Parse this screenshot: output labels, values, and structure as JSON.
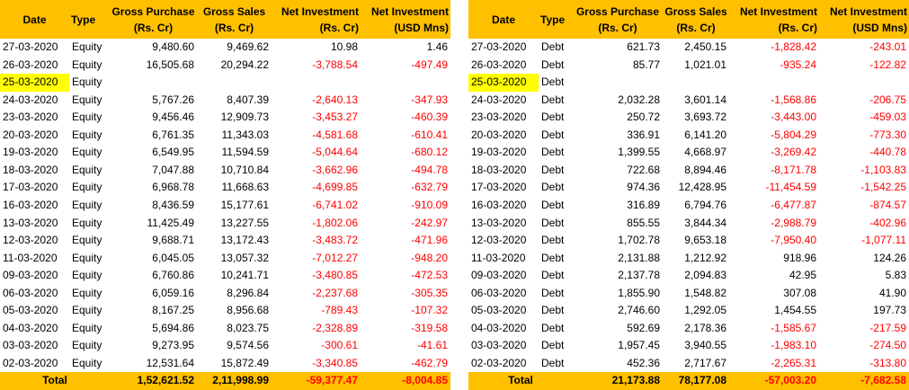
{
  "equity": {
    "headers": {
      "date": "Date",
      "type": "Type",
      "gross_purchase": "Gross Purchase",
      "gross_purchase_unit": "(Rs. Cr)",
      "gross_sales": "Gross Sales",
      "gross_sales_unit": "(Rs. Cr)",
      "net_inv_rs": "Net Investment",
      "net_inv_rs_unit": "(Rs. Cr)",
      "net_inv_usd": "Net Investment",
      "net_inv_usd_unit": "(USD Mns)"
    },
    "rows": [
      {
        "date": "27-03-2020",
        "type": "Equity",
        "gp": "9,480.60",
        "gs": "9,469.62",
        "ni": "10.98",
        "nu": "1.46",
        "neg": false,
        "hl": false
      },
      {
        "date": "26-03-2020",
        "type": "Equity",
        "gp": "16,505.68",
        "gs": "20,294.22",
        "ni": "-3,788.54",
        "nu": "-497.49",
        "neg": true,
        "hl": false
      },
      {
        "date": "25-03-2020",
        "type": "Equity",
        "gp": "",
        "gs": "",
        "ni": "",
        "nu": "",
        "neg": false,
        "hl": true
      },
      {
        "date": "24-03-2020",
        "type": "Equity",
        "gp": "5,767.26",
        "gs": "8,407.39",
        "ni": "-2,640.13",
        "nu": "-347.93",
        "neg": true,
        "hl": false
      },
      {
        "date": "23-03-2020",
        "type": "Equity",
        "gp": "9,456.46",
        "gs": "12,909.73",
        "ni": "-3,453.27",
        "nu": "-460.39",
        "neg": true,
        "hl": false
      },
      {
        "date": "20-03-2020",
        "type": "Equity",
        "gp": "6,761.35",
        "gs": "11,343.03",
        "ni": "-4,581.68",
        "nu": "-610.41",
        "neg": true,
        "hl": false
      },
      {
        "date": "19-03-2020",
        "type": "Equity",
        "gp": "6,549.95",
        "gs": "11,594.59",
        "ni": "-5,044.64",
        "nu": "-680.12",
        "neg": true,
        "hl": false
      },
      {
        "date": "18-03-2020",
        "type": "Equity",
        "gp": "7,047.88",
        "gs": "10,710.84",
        "ni": "-3,662.96",
        "nu": "-494.78",
        "neg": true,
        "hl": false
      },
      {
        "date": "17-03-2020",
        "type": "Equity",
        "gp": "6,968.78",
        "gs": "11,668.63",
        "ni": "-4,699.85",
        "nu": "-632.79",
        "neg": true,
        "hl": false
      },
      {
        "date": "16-03-2020",
        "type": "Equity",
        "gp": "8,436.59",
        "gs": "15,177.61",
        "ni": "-6,741.02",
        "nu": "-910.09",
        "neg": true,
        "hl": false
      },
      {
        "date": "13-03-2020",
        "type": "Equity",
        "gp": "11,425.49",
        "gs": "13,227.55",
        "ni": "-1,802.06",
        "nu": "-242.97",
        "neg": true,
        "hl": false
      },
      {
        "date": "12-03-2020",
        "type": "Equity",
        "gp": "9,688.71",
        "gs": "13,172.43",
        "ni": "-3,483.72",
        "nu": "-471.96",
        "neg": true,
        "hl": false
      },
      {
        "date": "11-03-2020",
        "type": "Equity",
        "gp": "6,045.05",
        "gs": "13,057.32",
        "ni": "-7,012.27",
        "nu": "-948.20",
        "neg": true,
        "hl": false
      },
      {
        "date": "09-03-2020",
        "type": "Equity",
        "gp": "6,760.86",
        "gs": "10,241.71",
        "ni": "-3,480.85",
        "nu": "-472.53",
        "neg": true,
        "hl": false
      },
      {
        "date": "06-03-2020",
        "type": "Equity",
        "gp": "6,059.16",
        "gs": "8,296.84",
        "ni": "-2,237.68",
        "nu": "-305.35",
        "neg": true,
        "hl": false
      },
      {
        "date": "05-03-2020",
        "type": "Equity",
        "gp": "8,167.25",
        "gs": "8,956.68",
        "ni": "-789.43",
        "nu": "-107.32",
        "neg": true,
        "hl": false
      },
      {
        "date": "04-03-2020",
        "type": "Equity",
        "gp": "5,694.86",
        "gs": "8,023.75",
        "ni": "-2,328.89",
        "nu": "-319.58",
        "neg": true,
        "hl": false
      },
      {
        "date": "03-03-2020",
        "type": "Equity",
        "gp": "9,273.95",
        "gs": "9,574.56",
        "ni": "-300.61",
        "nu": "-41.61",
        "neg": true,
        "hl": false
      },
      {
        "date": "02-03-2020",
        "type": "Equity",
        "gp": "12,531.64",
        "gs": "15,872.49",
        "ni": "-3,340.85",
        "nu": "-462.79",
        "neg": true,
        "hl": false
      }
    ],
    "total": {
      "label": "Total",
      "gp": "1,52,621.52",
      "gs": "2,11,998.99",
      "ni": "-59,377.47",
      "nu": "-8,004.85"
    }
  },
  "debt": {
    "headers": {
      "date": "Date",
      "type": "Type",
      "gross_purchase": "Gross Purchase",
      "gross_purchase_unit": "(Rs. Cr)",
      "gross_sales": "Gross Sales",
      "gross_sales_unit": "(Rs. Cr)",
      "net_inv_rs": "Net Investment",
      "net_inv_rs_unit": "(Rs. Cr)",
      "net_inv_usd": "Net Investment",
      "net_inv_usd_unit": "(USD Mns)"
    },
    "rows": [
      {
        "date": "27-03-2020",
        "type": "Debt",
        "gp": "621.73",
        "gs": "2,450.15",
        "ni": "-1,828.42",
        "nu": "-243.01",
        "neg": true,
        "hl": false
      },
      {
        "date": "26-03-2020",
        "type": "Debt",
        "gp": "85.77",
        "gs": "1,021.01",
        "ni": "-935.24",
        "nu": "-122.82",
        "neg": true,
        "hl": false
      },
      {
        "date": "25-03-2020",
        "type": "Debt",
        "gp": "",
        "gs": "",
        "ni": "",
        "nu": "",
        "neg": false,
        "hl": true
      },
      {
        "date": "24-03-2020",
        "type": "Debt",
        "gp": "2,032.28",
        "gs": "3,601.14",
        "ni": "-1,568.86",
        "nu": "-206.75",
        "neg": true,
        "hl": false
      },
      {
        "date": "23-03-2020",
        "type": "Debt",
        "gp": "250.72",
        "gs": "3,693.72",
        "ni": "-3,443.00",
        "nu": "-459.03",
        "neg": true,
        "hl": false
      },
      {
        "date": "20-03-2020",
        "type": "Debt",
        "gp": "336.91",
        "gs": "6,141.20",
        "ni": "-5,804.29",
        "nu": "-773.30",
        "neg": true,
        "hl": false
      },
      {
        "date": "19-03-2020",
        "type": "Debt",
        "gp": "1,399.55",
        "gs": "4,668.97",
        "ni": "-3,269.42",
        "nu": "-440.78",
        "neg": true,
        "hl": false
      },
      {
        "date": "18-03-2020",
        "type": "Debt",
        "gp": "722.68",
        "gs": "8,894.46",
        "ni": "-8,171.78",
        "nu": "-1,103.83",
        "neg": true,
        "hl": false
      },
      {
        "date": "17-03-2020",
        "type": "Debt",
        "gp": "974.36",
        "gs": "12,428.95",
        "ni": "-11,454.59",
        "nu": "-1,542.25",
        "neg": true,
        "hl": false
      },
      {
        "date": "16-03-2020",
        "type": "Debt",
        "gp": "316.89",
        "gs": "6,794.76",
        "ni": "-6,477.87",
        "nu": "-874.57",
        "neg": true,
        "hl": false
      },
      {
        "date": "13-03-2020",
        "type": "Debt",
        "gp": "855.55",
        "gs": "3,844.34",
        "ni": "-2,988.79",
        "nu": "-402.96",
        "neg": true,
        "hl": false
      },
      {
        "date": "12-03-2020",
        "type": "Debt",
        "gp": "1,702.78",
        "gs": "9,653.18",
        "ni": "-7,950.40",
        "nu": "-1,077.11",
        "neg": true,
        "hl": false
      },
      {
        "date": "11-03-2020",
        "type": "Debt",
        "gp": "2,131.88",
        "gs": "1,212.92",
        "ni": "918.96",
        "nu": "124.26",
        "neg": false,
        "hl": false
      },
      {
        "date": "09-03-2020",
        "type": "Debt",
        "gp": "2,137.78",
        "gs": "2,094.83",
        "ni": "42.95",
        "nu": "5.83",
        "neg": false,
        "hl": false
      },
      {
        "date": "06-03-2020",
        "type": "Debt",
        "gp": "1,855.90",
        "gs": "1,548.82",
        "ni": "307.08",
        "nu": "41.90",
        "neg": false,
        "hl": false
      },
      {
        "date": "05-03-2020",
        "type": "Debt",
        "gp": "2,746.60",
        "gs": "1,292.05",
        "ni": "1,454.55",
        "nu": "197.73",
        "neg": false,
        "hl": false
      },
      {
        "date": "04-03-2020",
        "type": "Debt",
        "gp": "592.69",
        "gs": "2,178.36",
        "ni": "-1,585.67",
        "nu": "-217.59",
        "neg": true,
        "hl": false
      },
      {
        "date": "03-03-2020",
        "type": "Debt",
        "gp": "1,957.45",
        "gs": "3,940.55",
        "ni": "-1,983.10",
        "nu": "-274.50",
        "neg": true,
        "hl": false
      },
      {
        "date": "02-03-2020",
        "type": "Debt",
        "gp": "452.36",
        "gs": "2,717.67",
        "ni": "-2,265.31",
        "nu": "-313.80",
        "neg": true,
        "hl": false
      }
    ],
    "total": {
      "label": "Total",
      "gp": "21,173.88",
      "gs": "78,177.08",
      "ni": "-57,003.20",
      "nu": "-7,682.58"
    }
  },
  "colors": {
    "header_bg": "#ffc000",
    "highlight": "#ffff00",
    "negative": "#ff0000"
  }
}
